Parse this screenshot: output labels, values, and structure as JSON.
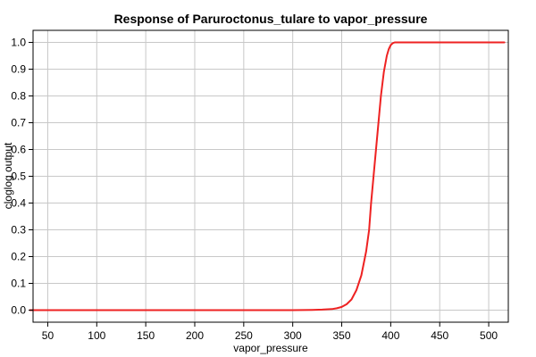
{
  "chart_data": {
    "type": "line",
    "title": "Response of Paruroctonus_tulare to vapor_pressure",
    "xlabel": "vapor_pressure",
    "ylabel": "cloglog output",
    "xlim": [
      35,
      520
    ],
    "ylim": [
      -0.045,
      1.045
    ],
    "x_ticks": [
      "50",
      "100",
      "150",
      "200",
      "250",
      "300",
      "350",
      "400",
      "450",
      "500"
    ],
    "y_ticks": [
      "0.0",
      "0.1",
      "0.2",
      "0.3",
      "0.4",
      "0.5",
      "0.6",
      "0.7",
      "0.8",
      "0.9",
      "1.0"
    ],
    "grid": true,
    "legend": "none",
    "series": [
      {
        "color": "#ee2222",
        "x": [
          32,
          100,
          200,
          300,
          320,
          330,
          340,
          345,
          350,
          355,
          360,
          365,
          370,
          375,
          378,
          380,
          382,
          385,
          388,
          390,
          393,
          396,
          398,
          400,
          402,
          404,
          406,
          420,
          480,
          516
        ],
        "y": [
          0,
          0,
          0,
          0,
          0.001,
          0.002,
          0.004,
          0.007,
          0.012,
          0.022,
          0.04,
          0.075,
          0.13,
          0.22,
          0.3,
          0.4,
          0.48,
          0.6,
          0.72,
          0.8,
          0.89,
          0.95,
          0.975,
          0.99,
          0.997,
          1.0,
          1.0,
          1.0,
          1.0,
          1.0
        ]
      }
    ]
  }
}
